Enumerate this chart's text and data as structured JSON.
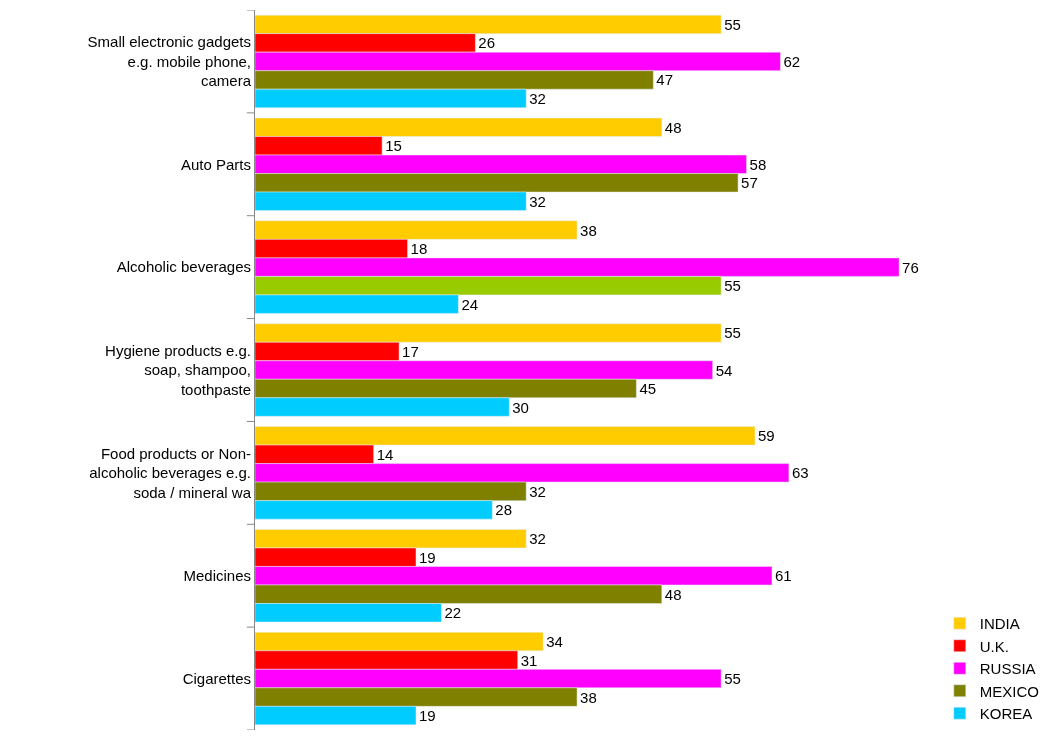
{
  "chart_data": {
    "type": "bar",
    "orientation": "horizontal",
    "data_labels": true,
    "legend": "bottom right",
    "categories": [
      "Small electronic gadgets e.g. mobile phone, camera",
      "Auto Parts",
      "Alcoholic beverages",
      "Hygiene products e.g. soap, shampoo, toothpaste",
      "Food products or Non-alcoholic beverages e.g. soda / mineral wa",
      "Medicines",
      "Cigarettes"
    ],
    "series": [
      {
        "name": "INDIA",
        "color": "#ffcc00",
        "values": [
          55,
          48,
          38,
          55,
          59,
          32,
          34
        ]
      },
      {
        "name": "U.K.",
        "color": "#ff0000",
        "values": [
          26,
          15,
          18,
          17,
          14,
          19,
          31
        ]
      },
      {
        "name": "RUSSIA",
        "color": "#ff00ff",
        "values": [
          62,
          58,
          76,
          54,
          63,
          61,
          55
        ]
      },
      {
        "name": "MEXICO",
        "color": "#808000",
        "colors": [
          "#808000",
          "#808000",
          "#99cc00",
          "#808000",
          "#808000",
          "#808000",
          "#808000"
        ],
        "values": [
          47,
          57,
          55,
          45,
          32,
          48,
          38
        ]
      },
      {
        "name": "KOREA",
        "color": "#00ccff",
        "values": [
          32,
          32,
          24,
          30,
          28,
          22,
          19
        ]
      }
    ]
  }
}
